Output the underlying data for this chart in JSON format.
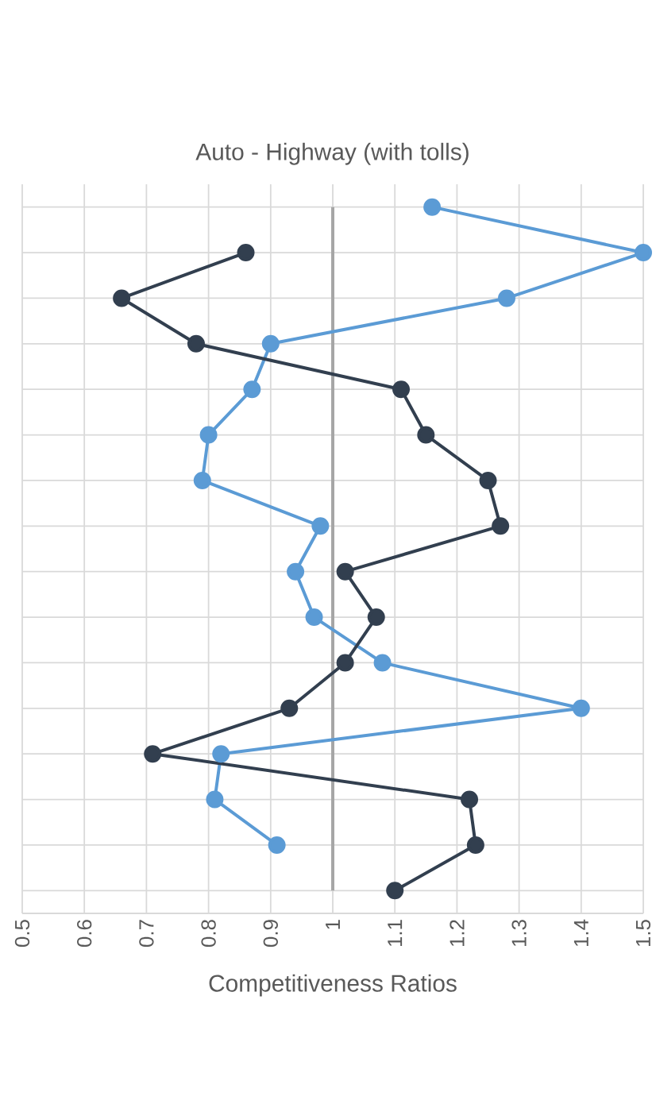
{
  "chart_data": {
    "type": "line",
    "orientation": "horizontal",
    "title": "Auto - Highway (with tolls)",
    "xlabel": "Competitiveness Ratios",
    "categories": [
      null,
      null,
      null,
      null,
      null,
      null,
      null,
      null,
      null,
      null,
      null,
      null,
      null,
      null,
      null,
      null
    ],
    "series": [
      {
        "color": "#5b9bd5",
        "values": [
          1.16,
          1.5,
          1.28,
          0.9,
          0.87,
          0.8,
          0.79,
          0.98,
          0.94,
          0.97,
          1.08,
          1.4,
          0.82,
          0.81,
          0.91,
          null
        ]
      },
      {
        "color": "#323f4f",
        "values": [
          null,
          0.86,
          0.66,
          0.78,
          1.11,
          1.15,
          1.25,
          1.27,
          1.02,
          1.07,
          1.02,
          0.93,
          0.71,
          1.22,
          1.23,
          1.1
        ]
      }
    ],
    "xlim": [
      0.5,
      1.5
    ],
    "xticks": [
      0.5,
      0.6,
      0.7,
      0.8,
      0.9,
      1,
      1.1,
      1.2,
      1.3,
      1.4,
      1.5
    ],
    "ref_lines": [
      {
        "axis": "x",
        "value": 1,
        "color": "#a6a6a6"
      }
    ],
    "grid": true,
    "marker": "circle",
    "line_style": "solid"
  }
}
